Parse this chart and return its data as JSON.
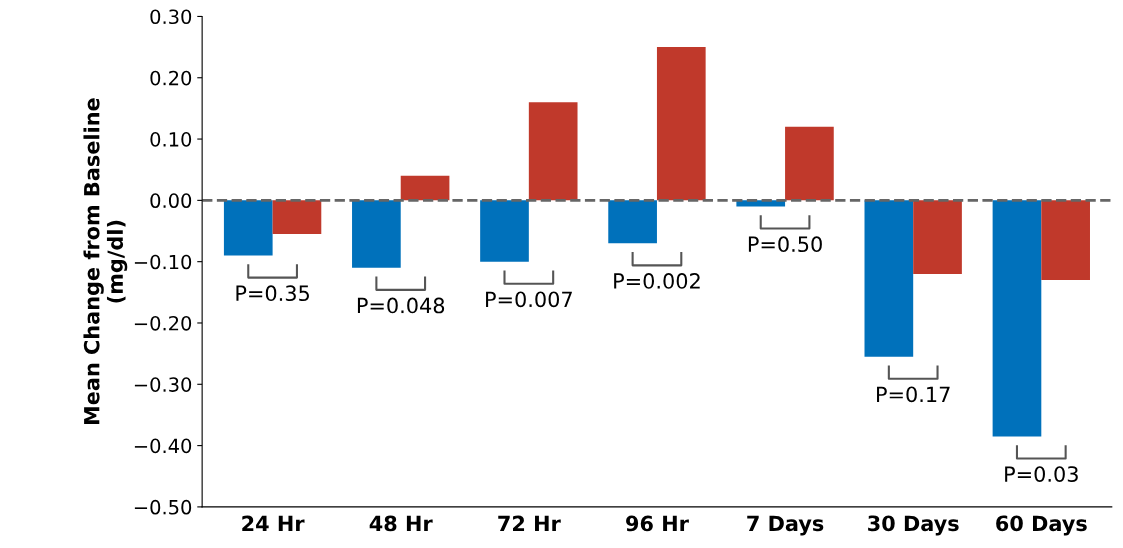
{
  "chart_data": {
    "type": "bar",
    "ylabel": "Mean Change from Baseline\n(mg/dl)",
    "categories": [
      "24 Hr",
      "48 Hr",
      "72 Hr",
      "96 Hr",
      "7 Days",
      "30 Days",
      "60 Days"
    ],
    "series": [
      {
        "color": "#0071bb",
        "values": [
          -0.09,
          -0.11,
          -0.1,
          -0.07,
          -0.01,
          -0.255,
          -0.385
        ]
      },
      {
        "color": "#c0392b",
        "values": [
          -0.055,
          0.04,
          0.16,
          0.25,
          0.12,
          -0.12,
          -0.13
        ]
      }
    ],
    "ylim": [
      -0.5,
      0.3
    ],
    "yticks": [
      {
        "value": -0.5,
        "label": "−0.50"
      },
      {
        "value": -0.4,
        "label": "−0.40"
      },
      {
        "value": -0.3,
        "label": "−0.30"
      },
      {
        "value": -0.2,
        "label": "−0.20"
      },
      {
        "value": -0.1,
        "label": "−0.10"
      },
      {
        "value": 0,
        "label": "0.00"
      },
      {
        "value": 0.1,
        "label": "0.10"
      },
      {
        "value": 0.2,
        "label": "0.20"
      },
      {
        "value": 0.3,
        "label": "0.30"
      }
    ],
    "ref_lines": [
      {
        "axis": "y",
        "value": 0,
        "color": "#666666",
        "line_style": "dashed"
      }
    ],
    "annotations": [
      "P=0.35",
      "P=0.048",
      "P=0.007",
      "P=0.002",
      "P=0.50",
      "P=0.17",
      "P=0.03"
    ],
    "grid": false,
    "legend": false
  }
}
